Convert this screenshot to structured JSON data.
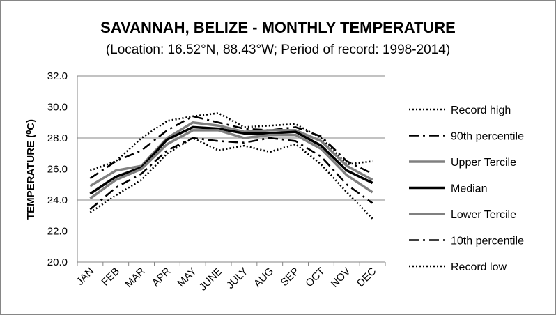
{
  "chart_data": {
    "type": "line",
    "title": "SAVANNAH, BELIZE - MONTHLY TEMPERATURE",
    "subtitle": "(Location: 16.52°N, 88.43°W; Period of record: 1998-2014)",
    "xlabel": "",
    "ylabel": "TEMPERATURE (⁰C)",
    "categories": [
      "JAN",
      "FEB",
      "MAR",
      "APR",
      "MAY",
      "JUNE",
      "JULY",
      "AUG",
      "SEP",
      "OCT",
      "NOV",
      "DEC"
    ],
    "ylim": [
      20.0,
      32.0
    ],
    "yticks": [
      "20.0",
      "22.0",
      "24.0",
      "26.0",
      "28.0",
      "30.0",
      "32.0"
    ],
    "grid": true,
    "legend_position": "right",
    "series": [
      {
        "name": "Record high",
        "color": "#000000",
        "style": "dotted",
        "values": [
          25.9,
          26.5,
          28.0,
          29.1,
          29.4,
          29.6,
          28.7,
          28.8,
          28.9,
          28.0,
          26.3,
          26.5
        ]
      },
      {
        "name": "90th percentile",
        "color": "#000000",
        "style": "dashdot",
        "values": [
          25.4,
          26.5,
          27.2,
          28.5,
          29.4,
          29.0,
          28.6,
          28.5,
          28.7,
          28.1,
          26.5,
          25.7
        ]
      },
      {
        "name": "Upper Tercile",
        "color": "#808080",
        "style": "solid",
        "values": [
          24.9,
          25.9,
          26.2,
          28.0,
          29.0,
          28.8,
          28.4,
          28.5,
          28.5,
          27.8,
          26.2,
          25.3
        ]
      },
      {
        "name": "Median",
        "color": "#000000",
        "style": "solid",
        "values": [
          24.4,
          25.5,
          26.1,
          27.9,
          28.7,
          28.6,
          28.3,
          28.3,
          28.4,
          27.5,
          25.9,
          25.1
        ]
      },
      {
        "name": "Lower Tercile",
        "color": "#808080",
        "style": "solid",
        "values": [
          24.1,
          25.3,
          26.0,
          27.6,
          28.5,
          28.5,
          28.0,
          28.2,
          28.2,
          27.3,
          25.6,
          24.5
        ]
      },
      {
        "name": "10th percentile",
        "color": "#000000",
        "style": "dashdot",
        "values": [
          23.4,
          24.8,
          25.7,
          27.2,
          28.0,
          27.8,
          27.7,
          28.0,
          27.8,
          26.8,
          25.0,
          23.8
        ]
      },
      {
        "name": "Record low",
        "color": "#000000",
        "style": "dotted",
        "values": [
          23.2,
          24.3,
          25.3,
          27.0,
          28.0,
          27.2,
          27.5,
          27.1,
          27.6,
          26.3,
          24.5,
          22.8
        ]
      }
    ]
  }
}
